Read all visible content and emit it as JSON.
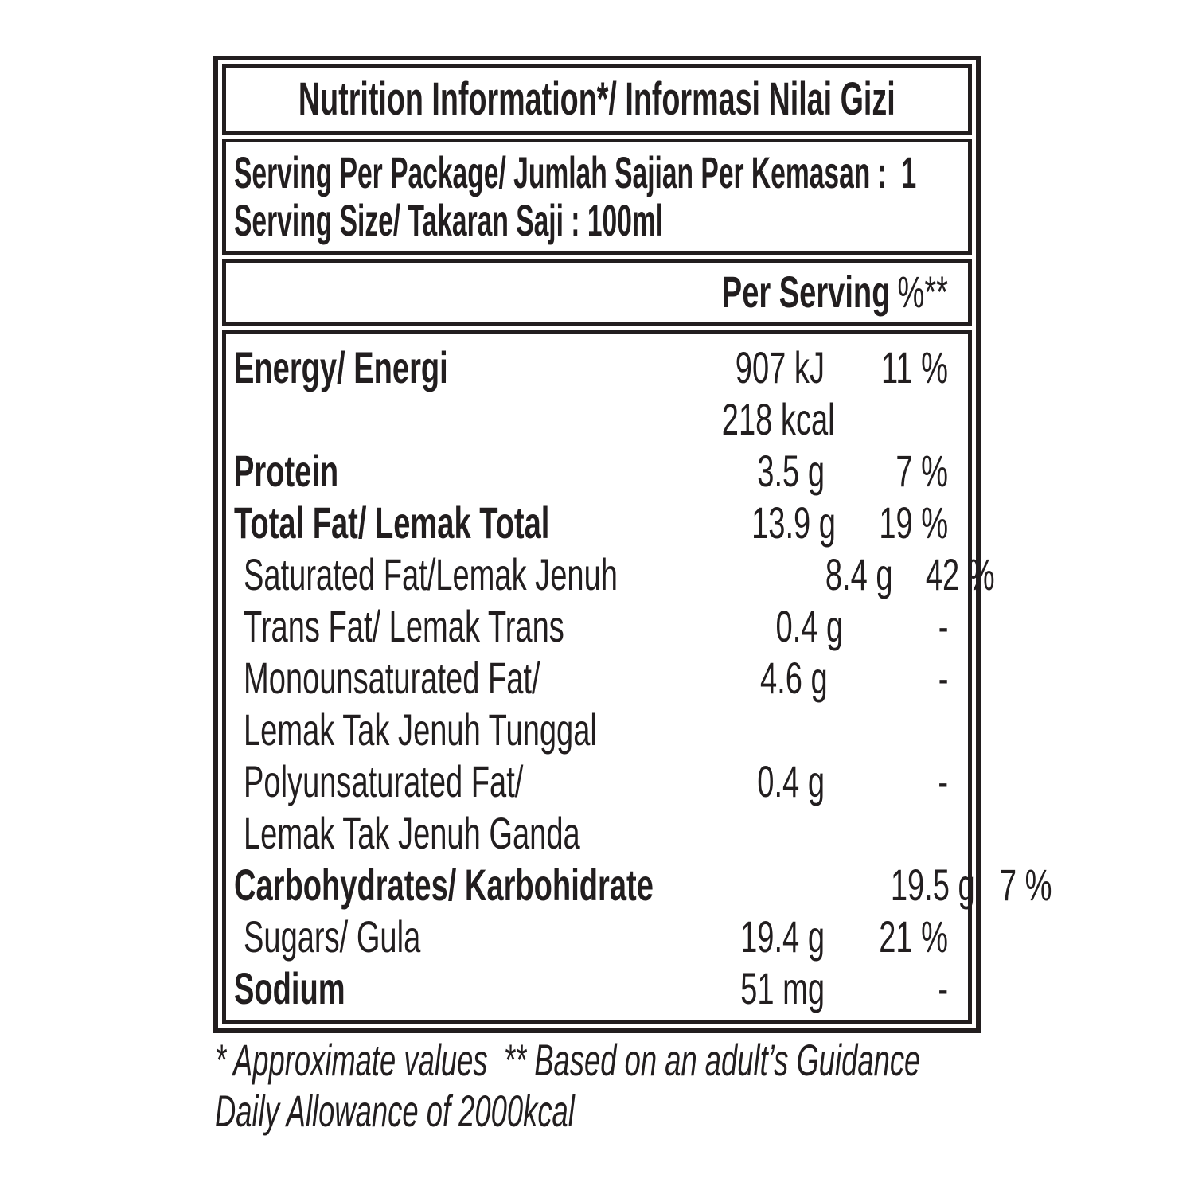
{
  "label": {
    "title": "Nutrition Information*/ Informasi Nilai Gizi",
    "serving": {
      "line1": "Serving Per Package/ Jumlah Sajian Per Kemasan :  1",
      "line2": "Serving Size/ Takaran Saji : 100ml"
    },
    "columns": {
      "per_serving": "Per Serving",
      "percent": "%**"
    },
    "rows": [
      {
        "label": "Energy/ Energi",
        "value": "907 kJ",
        "percent": "11 %"
      },
      {
        "label": "",
        "value": "218 kcal",
        "percent": ""
      },
      {
        "label": "Protein",
        "value": "3.5 g",
        "percent": "7 %"
      },
      {
        "label": "Total Fat/ Lemak Total",
        "value": "13.9 g",
        "percent": "19 %"
      },
      {
        "label": "Saturated Fat/Lemak Jenuh",
        "value": "8.4 g",
        "percent": "42 %"
      },
      {
        "label": "Trans Fat/ Lemak Trans",
        "value": "0.4 g",
        "percent": "-"
      },
      {
        "label": "Monounsaturated Fat/",
        "value": "4.6 g",
        "percent": "-"
      },
      {
        "label": "Lemak Tak Jenuh Tunggal",
        "value": "",
        "percent": ""
      },
      {
        "label": "Polyunsaturated Fat/",
        "value": "0.4 g",
        "percent": "-"
      },
      {
        "label": "Lemak Tak Jenuh Ganda",
        "value": "",
        "percent": ""
      },
      {
        "label": "Carbohydrates/ Karbohidrate",
        "value": "19.5 g",
        "percent": "7 %"
      },
      {
        "label": "Sugars/ Gula",
        "value": "19.4 g",
        "percent": "21 %"
      },
      {
        "label": "Sodium",
        "value": "51 mg",
        "percent": "-"
      }
    ],
    "footnote": {
      "line1": "* Approximate values  ** Based on an adult’s Guidance",
      "line2": "Daily Allowance of 2000kcal"
    },
    "colors": {
      "ink": "#221e1f",
      "background": "#ffffff"
    }
  }
}
